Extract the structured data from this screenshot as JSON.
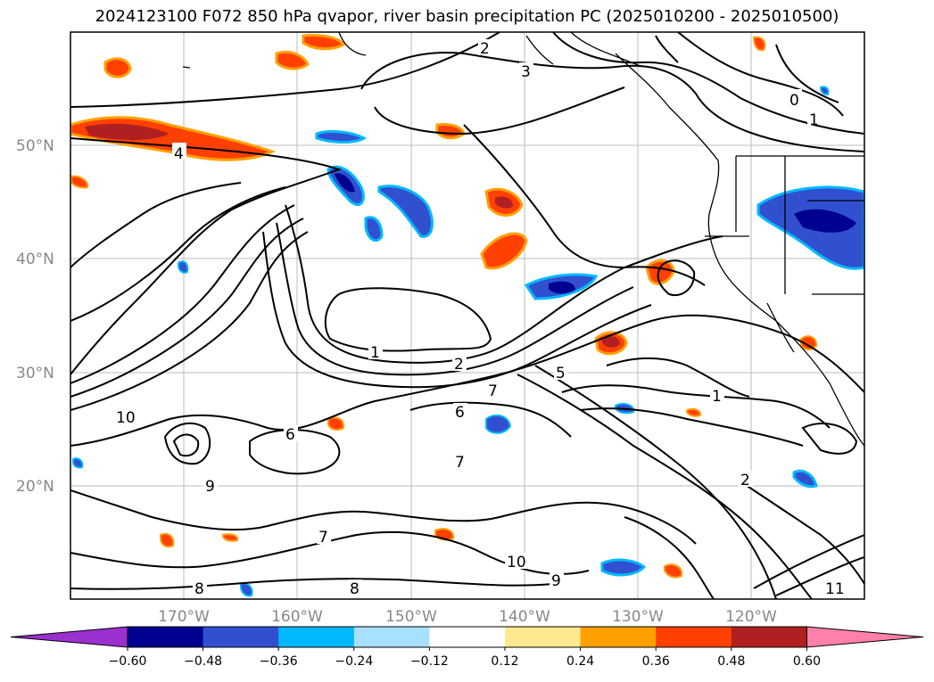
{
  "title": "2024123100 F072 850 hPa qvapor, river basin precipitation PC (2025010200 - 2025010500)",
  "map": {
    "lat_labels": [
      "50°N",
      "40°N",
      "30°N",
      "20°N"
    ],
    "lon_labels": [
      "170°W",
      "160°W",
      "150°W",
      "140°W",
      "130°W",
      "120°W"
    ],
    "gridlines": true
  },
  "colorbar": {
    "ticks": [
      "−0.60",
      "−0.48",
      "−0.36",
      "−0.24",
      "−0.12",
      "0.12",
      "0.24",
      "0.36",
      "0.48",
      "0.60"
    ],
    "colors": [
      "#9b30d0",
      "#000090",
      "#3050d0",
      "#00b8ff",
      "#a8e0ff",
      "#ffffff",
      "#ffe890",
      "#ffa000",
      "#ff4000",
      "#b02020",
      "#ff80a8"
    ],
    "extend": "both"
  },
  "contour_labels": [
    "2",
    "3",
    "4",
    "0",
    "1",
    "1",
    "2",
    "7",
    "6",
    "5",
    "10",
    "9",
    "8",
    "6",
    "7",
    "1",
    "2",
    "11",
    "10",
    "9",
    "8",
    "7"
  ]
}
